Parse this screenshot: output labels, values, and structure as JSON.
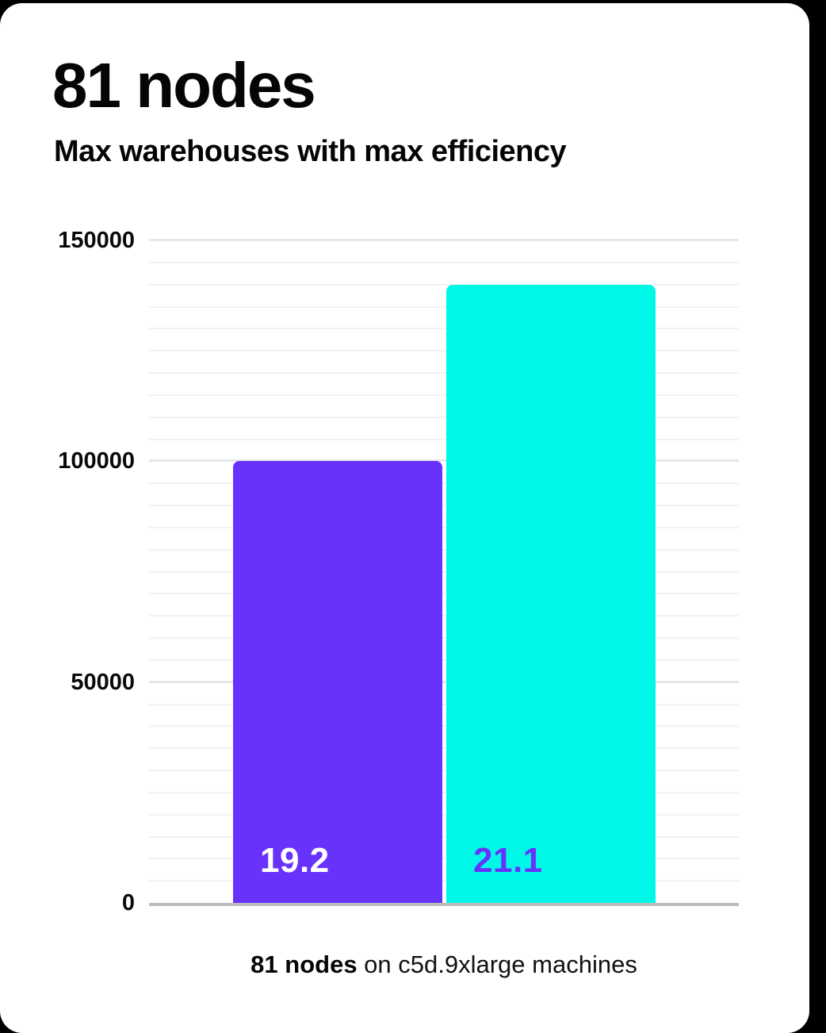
{
  "card": {
    "background": "#ffffff",
    "page_background": "#000000"
  },
  "chart_data": {
    "type": "bar",
    "title": "81 nodes",
    "subtitle": "Max warehouses with max efficiency",
    "categories": [
      "19.2",
      "21.1"
    ],
    "values": [
      100000,
      140000
    ],
    "bar_labels": [
      "19.2",
      "21.1"
    ],
    "bar_colors": [
      "#6733fc",
      "#00f8e9"
    ],
    "bar_label_colors": [
      "#ffffff",
      "#6733fc"
    ],
    "xlabel": "",
    "ylabel": "",
    "ylim": [
      0,
      150000
    ],
    "yticks": [
      0,
      50000,
      100000,
      150000
    ],
    "ytick_labels": [
      "0",
      "50000",
      "100000",
      "150000"
    ],
    "minor_grid_step": 5000,
    "major_grid_step": 50000,
    "grid": true,
    "legend_position": "none",
    "caption": "81 nodes on c5d.9xlarge machines",
    "caption_bold": "81 nodes",
    "caption_rest": " on c5d.9xlarge machines",
    "axis_baseline_color": "#bcbcbc",
    "major_grid_color": "#e6e6e6",
    "minor_grid_color": "#f2f2f2"
  }
}
